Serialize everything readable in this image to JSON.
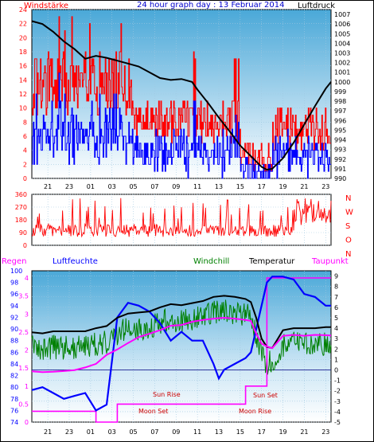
{
  "chart_data": [
    {
      "type": "line",
      "panel": "wind_pressure",
      "title": "24 hour graph day : 13 Februar 2014",
      "left_label": "Windstärke",
      "right_label": "Luftdruck",
      "x_ticks": [
        "21",
        "23",
        "01",
        "03",
        "05",
        "07",
        "09",
        "11",
        "13",
        "15",
        "17",
        "19",
        "21",
        "23"
      ],
      "y_left_ticks": [
        0,
        2,
        4,
        6,
        8,
        10,
        12,
        14,
        16,
        18,
        20,
        22,
        24
      ],
      "y_left_range": [
        0,
        24
      ],
      "y_right_ticks": [
        990,
        991,
        992,
        993,
        994,
        995,
        996,
        997,
        998,
        999,
        1000,
        1001,
        1002,
        1003,
        1004,
        1005,
        1006,
        1007
      ],
      "y_right_range": [
        990,
        1007.5
      ],
      "series": [
        {
          "key": "gust",
          "color": "#ff0000"
        },
        {
          "key": "wind",
          "color": "#0000ff"
        },
        {
          "key": "pressure",
          "color": "#000000",
          "points": [
            [
              19.5,
              1006.3
            ],
            [
              20.5,
              1006.0
            ],
            [
              21.5,
              1005.2
            ],
            [
              22.5,
              1004.2
            ],
            [
              23.5,
              1003.4
            ],
            [
              24.5,
              1002.4
            ],
            [
              25.5,
              1002.7
            ],
            [
              26.5,
              1002.5
            ],
            [
              27.5,
              1002.2
            ],
            [
              28.5,
              1001.9
            ],
            [
              29.5,
              1001.6
            ],
            [
              30.5,
              1001.0
            ],
            [
              31.5,
              1000.4
            ],
            [
              32.5,
              1000.2
            ],
            [
              33.5,
              1000.3
            ],
            [
              34.5,
              1000.0
            ],
            [
              35.0,
              999.2
            ],
            [
              36.0,
              997.8
            ],
            [
              37.0,
              996.3
            ],
            [
              38.0,
              994.9
            ],
            [
              39.0,
              993.4
            ],
            [
              40.0,
              992.3
            ],
            [
              41.0,
              991.2
            ],
            [
              41.5,
              990.9
            ],
            [
              42.0,
              991.0
            ],
            [
              43.0,
              992.1
            ],
            [
              44.0,
              993.7
            ],
            [
              45.0,
              995.6
            ],
            [
              46.0,
              997.5
            ],
            [
              47.0,
              999.3
            ],
            [
              47.5,
              1000.0
            ]
          ]
        }
      ]
    },
    {
      "type": "line",
      "panel": "wind_direction",
      "y_ticks": [
        0,
        90,
        180,
        270,
        360
      ],
      "y_range": [
        0,
        360
      ],
      "direction_labels": [
        "N",
        "W",
        "S",
        "O",
        "N"
      ],
      "series": [
        {
          "key": "direction",
          "color": "#ff0000"
        }
      ]
    },
    {
      "type": "line",
      "panel": "humidity_temperature",
      "labels": {
        "rain": "Regen",
        "humidity": "Luftfeuchte",
        "windchill": "Windchill",
        "temperature": "Temperatur",
        "dewpoint": "Taupunkt"
      },
      "y_left_rain_ticks": [
        "0",
        "0.5",
        "1",
        "1.5",
        "2",
        "2.5",
        "3",
        "3.5",
        "4"
      ],
      "y_left_rain_range": [
        0,
        4.2
      ],
      "y_left_humidity_ticks": [
        74,
        76,
        78,
        80,
        82,
        84,
        86,
        88,
        90,
        92,
        94,
        96,
        98,
        100
      ],
      "y_left_humidity_range": [
        74,
        100
      ],
      "y_right_temp_ticks": [
        -5,
        -4,
        -3,
        -2,
        -1,
        0,
        1,
        2,
        3,
        4,
        5,
        6,
        7,
        8,
        9
      ],
      "y_right_temp_range": [
        -5,
        9.5
      ],
      "annotations": [
        "Moon Set",
        "Sun Rise",
        "Sun Set",
        "Moon Rise"
      ],
      "series": [
        {
          "key": "humidity",
          "color": "#0000ff",
          "points": [
            [
              19.5,
              79.5
            ],
            [
              20.5,
              80
            ],
            [
              21.5,
              79
            ],
            [
              22.5,
              78
            ],
            [
              23.5,
              78.5
            ],
            [
              24.5,
              79
            ],
            [
              25.5,
              76
            ],
            [
              26.5,
              77
            ],
            [
              27.5,
              92
            ],
            [
              28.5,
              94.5
            ],
            [
              29.5,
              94
            ],
            [
              30.5,
              93
            ],
            [
              31.5,
              91
            ],
            [
              32.5,
              88
            ],
            [
              33.5,
              89.5
            ],
            [
              34.5,
              88
            ],
            [
              35.5,
              88
            ],
            [
              36.5,
              84
            ],
            [
              37.0,
              81.5
            ],
            [
              37.5,
              83
            ],
            [
              38.5,
              84
            ],
            [
              39.5,
              85
            ],
            [
              40.0,
              86
            ],
            [
              40.5,
              90
            ],
            [
              41.0,
              94
            ],
            [
              41.5,
              98
            ],
            [
              42.0,
              99
            ],
            [
              43.0,
              99
            ],
            [
              44.0,
              98.5
            ],
            [
              45.0,
              96
            ],
            [
              46.0,
              95.5
            ],
            [
              47.0,
              94
            ],
            [
              47.5,
              94
            ]
          ]
        },
        {
          "key": "temperature",
          "color": "#000000",
          "points": [
            [
              19.5,
              3.6
            ],
            [
              20.5,
              3.5
            ],
            [
              21.5,
              3.7
            ],
            [
              22.5,
              3.7
            ],
            [
              23.5,
              3.7
            ],
            [
              24.5,
              3.7
            ],
            [
              25.5,
              4.0
            ],
            [
              26.5,
              4.2
            ],
            [
              27.5,
              5.0
            ],
            [
              28.5,
              5.4
            ],
            [
              29.5,
              5.5
            ],
            [
              30.5,
              5.6
            ],
            [
              31.5,
              6.0
            ],
            [
              32.5,
              6.3
            ],
            [
              33.5,
              6.2
            ],
            [
              34.5,
              6.4
            ],
            [
              35.5,
              6.6
            ],
            [
              36.5,
              7.0
            ],
            [
              37.5,
              7.1
            ],
            [
              38.5,
              7.0
            ],
            [
              39.5,
              6.8
            ],
            [
              40.0,
              6.5
            ],
            [
              40.5,
              5.0
            ],
            [
              41.0,
              3.0
            ],
            [
              41.5,
              2.2
            ],
            [
              42.0,
              2.1
            ],
            [
              43.0,
              3.8
            ],
            [
              44.0,
              4.0
            ],
            [
              45.0,
              4.0
            ],
            [
              46.0,
              4.0
            ],
            [
              47.0,
              4.1
            ],
            [
              47.5,
              4.1
            ]
          ]
        },
        {
          "key": "windchill",
          "color": "#008000"
        },
        {
          "key": "dewpoint",
          "color": "#ff00ff",
          "points": [
            [
              19.5,
              -0.1
            ],
            [
              20.5,
              -0.2
            ],
            [
              21.5,
              -0.2
            ],
            [
              22.5,
              -0.1
            ],
            [
              23.5,
              0.0
            ],
            [
              24.5,
              0.2
            ],
            [
              25.5,
              0.6
            ],
            [
              26.5,
              1.4
            ],
            [
              27.5,
              2.0
            ],
            [
              28.5,
              2.6
            ],
            [
              29.5,
              3.1
            ],
            [
              30.5,
              3.5
            ],
            [
              31.5,
              3.8
            ],
            [
              32.5,
              4.2
            ],
            [
              33.5,
              4.3
            ],
            [
              34.5,
              4.6
            ],
            [
              35.5,
              4.8
            ],
            [
              36.5,
              4.9
            ],
            [
              37.5,
              5.0
            ],
            [
              38.5,
              4.9
            ],
            [
              39.5,
              4.8
            ],
            [
              40.0,
              4.7
            ],
            [
              40.5,
              3.5
            ],
            [
              41.0,
              2.5
            ],
            [
              41.5,
              2.2
            ],
            [
              42.0,
              2.1
            ],
            [
              43.0,
              3.3
            ],
            [
              44.0,
              3.4
            ],
            [
              45.0,
              3.3
            ],
            [
              46.0,
              3.4
            ],
            [
              47.0,
              3.3
            ],
            [
              47.5,
              3.3
            ]
          ]
        },
        {
          "key": "rain",
          "color": "#ff00ff",
          "points": [
            [
              19.5,
              0.3
            ],
            [
              25.5,
              0.3
            ],
            [
              25.5,
              0
            ],
            [
              27.5,
              0
            ],
            [
              27.5,
              0.5
            ],
            [
              39.5,
              0.5
            ],
            [
              39.5,
              1.0
            ],
            [
              41.5,
              1.0
            ],
            [
              41.5,
              4.0
            ],
            [
              47.5,
              4.0
            ]
          ]
        }
      ]
    }
  ]
}
